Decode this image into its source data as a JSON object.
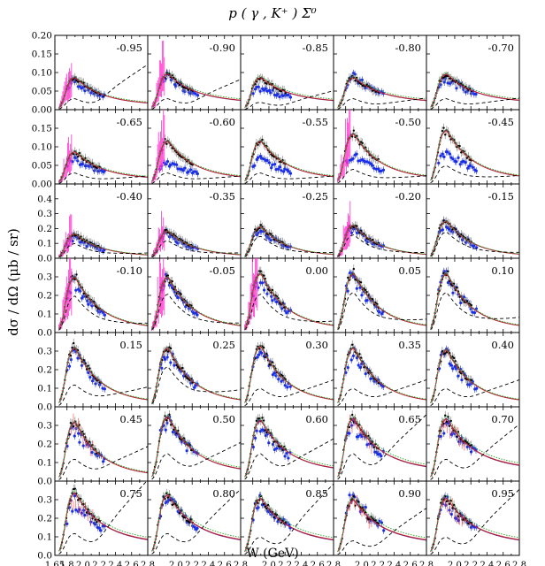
{
  "figure": {
    "title": "p ( γ , K⁺ ) Σ⁰",
    "ylabel": "dσ / dΩ   (μb / sr)",
    "xlabel": "W (GeV)"
  },
  "colors": {
    "frame": "#000000",
    "model_dashed": "#000000",
    "model_solid_a": "#7a1f7a",
    "model_solid_b": "#cc2222",
    "model_dotted": "#22aa22",
    "data_blue": "#1a2ee6",
    "data_magenta": "#ff33cc",
    "data_red": "#ff4444",
    "data_black": "#000000",
    "data_gray": "#777777"
  },
  "chart_data": {
    "type": "scatter",
    "description_rows": 7,
    "x_axis": {
      "label": "W (GeV)",
      "range": [
        1.65,
        2.8
      ],
      "ticks": [
        "1.65",
        "1.8",
        "2.0",
        "2.2",
        "2.4",
        "2.6",
        "2.8",
        "2.0",
        "2.2",
        "2.4",
        "2.6",
        "2.8",
        "2.0",
        "2.2",
        "2.4",
        "2.6",
        "2.8",
        "2.0",
        "2.2",
        "2.4",
        "2.6",
        "2.8",
        "2.0",
        "2.2",
        "2.4",
        "2.6",
        "2.8"
      ]
    },
    "rows": [
      {
        "ylim": [
          0,
          0.2
        ],
        "yticks": [
          "0.00",
          "0.05",
          "0.10",
          "0.15",
          "0.20"
        ]
      },
      {
        "ylim": [
          0,
          0.2
        ],
        "yticks": [
          "0.00",
          "0.05",
          "0.10",
          "0.15"
        ]
      },
      {
        "ylim": [
          0,
          0.5
        ],
        "yticks": [
          "0.0",
          "0.1",
          "0.2",
          "0.3",
          "0.4"
        ]
      },
      {
        "ylim": [
          0,
          0.4
        ],
        "yticks": [
          "0.0",
          "0.1",
          "0.2",
          "0.3"
        ]
      },
      {
        "ylim": [
          0,
          0.4
        ],
        "yticks": [
          "0.0",
          "0.1",
          "0.2",
          "0.3"
        ]
      },
      {
        "ylim": [
          0,
          0.4
        ],
        "yticks": [
          "0.0",
          "0.1",
          "0.2",
          "0.3"
        ]
      },
      {
        "ylim": [
          0,
          0.4
        ],
        "yticks": [
          "0.0",
          "0.1",
          "0.2",
          "0.3"
        ]
      }
    ],
    "panels": [
      {
        "label": "-0.95",
        "peak": 0.07,
        "tail": 0.02,
        "dash": [
          0.03,
          0.12
        ],
        "blue": 0.06
      },
      {
        "label": "-0.90",
        "peak": 0.07,
        "tail": 0.03,
        "dash": [
          0.03,
          0.08
        ],
        "blue": 0.06
      },
      {
        "label": "-0.85",
        "peak": 0.06,
        "tail": 0.03,
        "dash": [
          0.02,
          0.05
        ],
        "blue": 0.03
      },
      {
        "label": "-0.80",
        "peak": 0.06,
        "tail": 0.03,
        "dash": [
          0.03,
          0.03
        ],
        "blue": 0.06
      },
      {
        "label": "-0.70",
        "peak": 0.07,
        "tail": 0.03,
        "dash": [
          0.03,
          0.03
        ],
        "blue": 0.06
      },
      {
        "label": "-0.65",
        "peak": 0.07,
        "tail": 0.02,
        "dash": [
          0.03,
          0.02
        ],
        "blue": 0.05
      },
      {
        "label": "-0.60",
        "peak": 0.1,
        "tail": 0.02,
        "dash": [
          0.03,
          0.02
        ],
        "blue": 0.04
      },
      {
        "label": "-0.55",
        "peak": 0.1,
        "tail": 0.02,
        "dash": [
          0.03,
          0.02
        ],
        "blue": 0.05
      },
      {
        "label": "-0.50",
        "peak": 0.12,
        "tail": 0.02,
        "dash": [
          0.04,
          0.02
        ],
        "blue": 0.06
      },
      {
        "label": "-0.45",
        "peak": 0.13,
        "tail": 0.02,
        "dash": [
          0.05,
          0.02
        ],
        "blue": 0.07
      },
      {
        "label": "-0.40",
        "peak": 0.15,
        "tail": 0.02,
        "dash": [
          0.1,
          0.03
        ],
        "blue": 0.12
      },
      {
        "label": "-0.35",
        "peak": 0.17,
        "tail": 0.02,
        "dash": [
          0.12,
          0.03
        ],
        "blue": 0.15
      },
      {
        "label": "-0.25",
        "peak": 0.2,
        "tail": 0.02,
        "dash": [
          0.15,
          0.03
        ],
        "blue": 0.18
      },
      {
        "label": "-0.20",
        "peak": 0.21,
        "tail": 0.02,
        "dash": [
          0.16,
          0.03
        ],
        "blue": 0.19
      },
      {
        "label": "-0.15",
        "peak": 0.24,
        "tail": 0.02,
        "dash": [
          0.18,
          0.03
        ],
        "blue": 0.22
      },
      {
        "label": "-0.10",
        "peak": 0.28,
        "tail": 0.03,
        "dash": [
          0.2,
          0.04
        ],
        "blue": 0.25
      },
      {
        "label": "-0.05",
        "peak": 0.28,
        "tail": 0.03,
        "dash": [
          0.21,
          0.04
        ],
        "blue": 0.26
      },
      {
        "label": "0.00",
        "peak": 0.3,
        "tail": 0.03,
        "dash": [
          0.21,
          0.05
        ],
        "blue": 0.27
      },
      {
        "label": "0.05",
        "peak": 0.3,
        "tail": 0.03,
        "dash": [
          0.22,
          0.06
        ],
        "blue": 0.28
      },
      {
        "label": "0.10",
        "peak": 0.3,
        "tail": 0.03,
        "dash": [
          0.22,
          0.07
        ],
        "blue": 0.28
      },
      {
        "label": "0.15",
        "peak": 0.3,
        "tail": 0.03,
        "dash": [
          0.12,
          0.1
        ],
        "blue": 0.27
      },
      {
        "label": "0.25",
        "peak": 0.3,
        "tail": 0.03,
        "dash": [
          0.22,
          0.08
        ],
        "blue": 0.27
      },
      {
        "label": "0.30",
        "peak": 0.31,
        "tail": 0.03,
        "dash": [
          0.1,
          0.14
        ],
        "blue": 0.28
      },
      {
        "label": "0.35",
        "peak": 0.3,
        "tail": 0.03,
        "dash": [
          0.1,
          0.14
        ],
        "blue": 0.27
      },
      {
        "label": "0.40",
        "peak": 0.29,
        "tail": 0.03,
        "dash": [
          0.1,
          0.14
        ],
        "blue": 0.26
      },
      {
        "label": "0.45",
        "peak": 0.29,
        "tail": 0.04,
        "dash": [
          0.12,
          0.18
        ],
        "blue": 0.25
      },
      {
        "label": "0.50",
        "peak": 0.29,
        "tail": 0.07,
        "dash": [
          0.15,
          0.2
        ],
        "blue": 0.27
      },
      {
        "label": "0.60",
        "peak": 0.26,
        "tail": 0.08,
        "dash": [
          0.15,
          0.22
        ],
        "blue": 0.22
      },
      {
        "label": "0.65",
        "peak": 0.26,
        "tail": 0.09,
        "dash": [
          0.15,
          0.35
        ],
        "blue": 0.22
      },
      {
        "label": "0.70",
        "peak": 0.25,
        "tail": 0.1,
        "dash": [
          0.12,
          0.3
        ],
        "blue": 0.22
      },
      {
        "label": "0.75",
        "peak": 0.25,
        "tail": 0.1,
        "dash": [
          0.12,
          0.4
        ],
        "blue": 0.2
      },
      {
        "label": "0.80",
        "peak": 0.24,
        "tail": 0.1,
        "dash": [
          0.12,
          0.35
        ],
        "blue": 0.22
      },
      {
        "label": "0.85",
        "peak": 0.22,
        "tail": 0.1,
        "dash": [
          0.1,
          0.38
        ],
        "blue": 0.22
      },
      {
        "label": "0.90",
        "peak": 0.21,
        "tail": 0.1,
        "dash": [
          0.08,
          0.25
        ],
        "blue": 0.22
      },
      {
        "label": "0.95",
        "peak": 0.22,
        "tail": 0.1,
        "dash": [
          0.1,
          0.35
        ],
        "blue": 0.2
      }
    ]
  }
}
